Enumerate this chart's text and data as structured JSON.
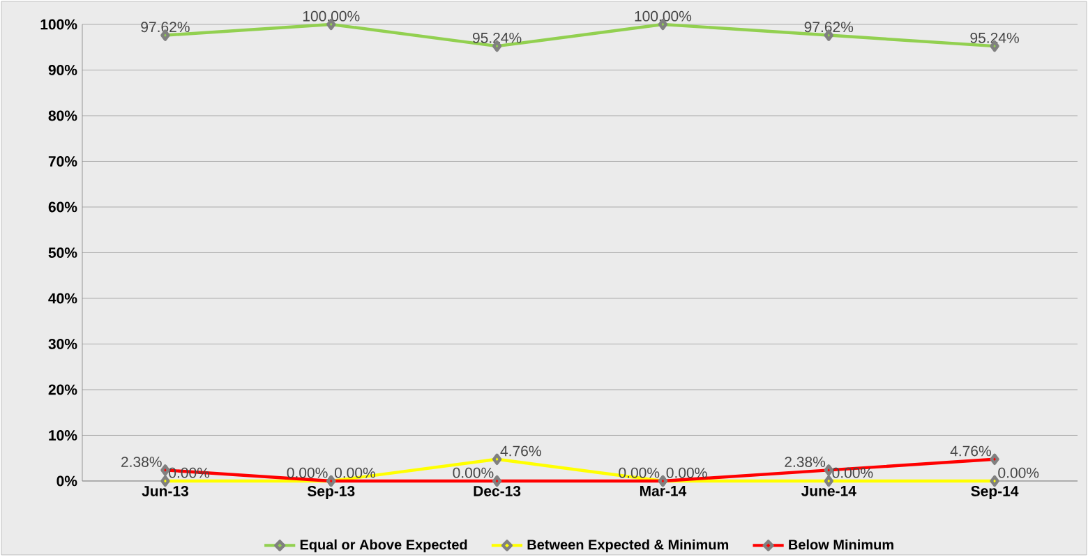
{
  "chart_data": {
    "type": "line",
    "categories": [
      "Jun-13",
      "Sep-13",
      "Dec-13",
      "Mar-14",
      "June-14",
      "Sep-14"
    ],
    "series": [
      {
        "name": "Equal or Above Expected",
        "color": "#92d050",
        "values": [
          97.62,
          100,
          95.24,
          100,
          97.62,
          95.24
        ],
        "value_labels": [
          "97.62%",
          "100.00%",
          "95.24%",
          "100.00%",
          "97.62%",
          "95.24%"
        ]
      },
      {
        "name": "Between Expected & Minimum",
        "color": "#ffff00",
        "values": [
          0,
          0,
          4.76,
          0,
          0,
          0
        ],
        "value_labels": [
          "0.00%",
          "0.00%",
          "4.76%",
          "0.00%",
          "0.00%",
          "0.00%"
        ]
      },
      {
        "name": "Below Minimum",
        "color": "#ff0000",
        "values": [
          2.38,
          0,
          0,
          0,
          2.38,
          4.76
        ],
        "value_labels": [
          "2.38%",
          "0.00%",
          "0.00%",
          "0.00%",
          "2.38%",
          "4.76%"
        ]
      }
    ],
    "ylim": [
      0,
      100
    ],
    "yticks": [
      {
        "value": 0,
        "label": "0%"
      },
      {
        "value": 10,
        "label": "10%"
      },
      {
        "value": 20,
        "label": "20%"
      },
      {
        "value": 30,
        "label": "30%"
      },
      {
        "value": 40,
        "label": "40%"
      },
      {
        "value": 50,
        "label": "50%"
      },
      {
        "value": 60,
        "label": "60%"
      },
      {
        "value": 70,
        "label": "70%"
      },
      {
        "value": 80,
        "label": "80%"
      },
      {
        "value": 90,
        "label": "90%"
      },
      {
        "value": 100,
        "label": "100%"
      }
    ],
    "grid": "y",
    "legend": "bottom",
    "marker": "diamond",
    "line_style": "solid"
  }
}
